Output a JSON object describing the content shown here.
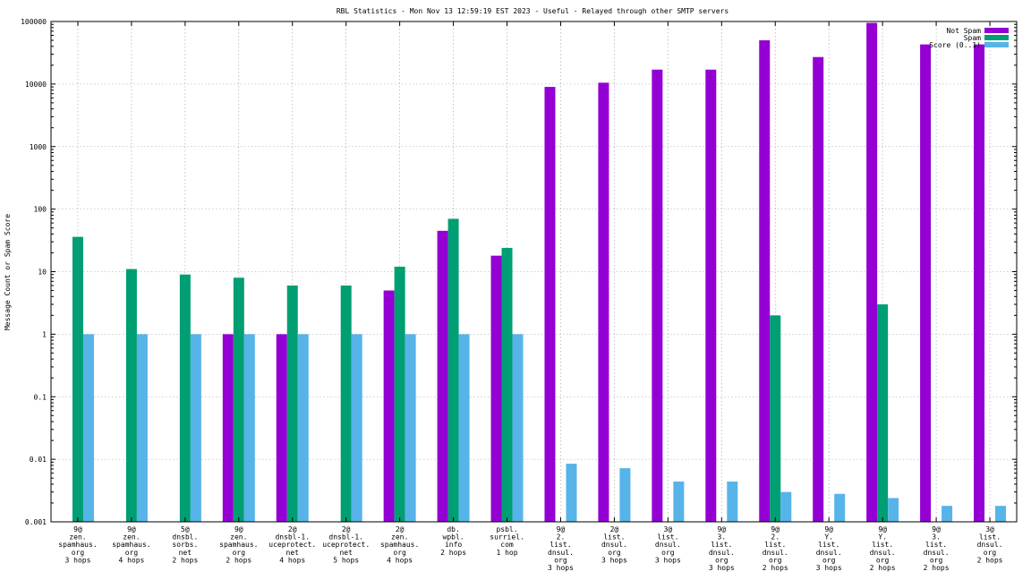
{
  "chart_data": {
    "type": "bar",
    "title": "RBL Statistics - Mon Nov 13 12:59:19 EST 2023 - Useful - Relayed through other SMTP servers",
    "xlabel": "",
    "ylabel": "Message Count or Spam Score",
    "yscale": "log",
    "ylim": [
      0.001,
      100000
    ],
    "yticks": [
      "100000",
      "10000",
      "1000",
      "100",
      "10",
      "1",
      "0.1",
      "0.01",
      "0.001"
    ],
    "legend_position": "top-right",
    "categories": [
      [
        "9@",
        "zen.",
        "spamhaus.",
        "org",
        "3 hops"
      ],
      [
        "9@",
        "zen.",
        "spamhaus.",
        "org",
        "4 hops"
      ],
      [
        "5@",
        "dnsbl.",
        "sorbs.",
        "net",
        "2 hops"
      ],
      [
        "9@",
        "zen.",
        "spamhaus.",
        "org",
        "2 hops"
      ],
      [
        "2@",
        "dnsbl-1.",
        "uceprotect.",
        "net",
        "4 hops"
      ],
      [
        "2@",
        "dnsbl-1.",
        "uceprotect.",
        "net",
        "5 hops"
      ],
      [
        "2@",
        "zen.",
        "spamhaus.",
        "org",
        "4 hops"
      ],
      [
        "db.",
        "wpbl.",
        "info",
        "2 hops"
      ],
      [
        "psbl.",
        "surriel.",
        "com",
        "1 hop"
      ],
      [
        "9@",
        "2.",
        "list.",
        "dnsul.",
        "org",
        "3 hops"
      ],
      [
        "2@",
        "list.",
        "dnsul.",
        "org",
        "3 hops"
      ],
      [
        "3@",
        "list.",
        "dnsul.",
        "org",
        "3 hops"
      ],
      [
        "9@",
        "3.",
        "list.",
        "dnsul.",
        "org",
        "3 hops"
      ],
      [
        "9@",
        "2.",
        "list.",
        "dnsul.",
        "org",
        "2 hops"
      ],
      [
        "9@",
        "Y.",
        "list.",
        "dnsul.",
        "org",
        "3 hops"
      ],
      [
        "9@",
        "Y.",
        "list.",
        "dnsul.",
        "org",
        "2 hops"
      ],
      [
        "9@",
        "3.",
        "list.",
        "dnsul.",
        "org",
        "2 hops"
      ],
      [
        "3@",
        "list.",
        "dnsul.",
        "org",
        "2 hops"
      ]
    ],
    "series": [
      {
        "name": "Not Spam",
        "color": "#9400d3",
        "values": [
          0,
          0,
          0,
          1,
          1,
          0,
          5,
          45,
          18,
          9000,
          10500,
          17000,
          17000,
          50000,
          27000,
          95000,
          43000,
          43000
        ]
      },
      {
        "name": "Spam",
        "color": "#009e73",
        "values": [
          36,
          11,
          9,
          8,
          6,
          6,
          12,
          70,
          24,
          0,
          0,
          0,
          0,
          2,
          0,
          3,
          0,
          0
        ]
      },
      {
        "name": "Score (0..1)",
        "color": "#56b4e9",
        "values": [
          1,
          1,
          1,
          1,
          1,
          1,
          1,
          1,
          1,
          0.0085,
          0.0072,
          0.0044,
          0.0044,
          0.003,
          0.0028,
          0.0024,
          0.0018,
          0.0018
        ]
      }
    ]
  }
}
